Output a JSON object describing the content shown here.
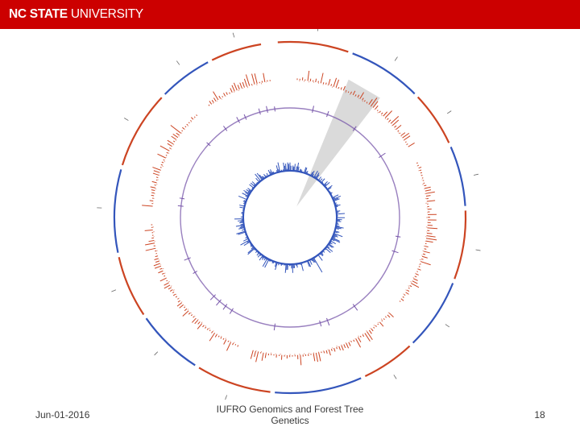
{
  "header": {
    "logo_bold": "NC STATE",
    "logo_regular": "UNIVERSITY",
    "bar_color": "#cc0000"
  },
  "figure": {
    "type": "circos genome plot",
    "colors": {
      "red": "#cc4422",
      "blue": "#3355bb",
      "purple": "#7755aa",
      "highlight": "#bbbbbb"
    }
  },
  "footer": {
    "date": "Jun-01-2016",
    "title": "IUFRO Genomics and Forest Tree Genetics",
    "page": "18"
  }
}
